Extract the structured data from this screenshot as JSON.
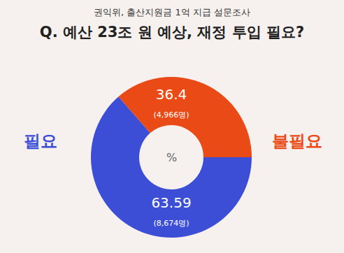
{
  "chart_data": {
    "type": "donut",
    "subtitle": "권익위, 출산지원금 1억 지급 설문조사",
    "title": "Q. 예산 23조 원 예상, 재정 투입 필요?",
    "categories": [
      "필요",
      "불필요"
    ],
    "values": [
      63.59,
      36.4
    ],
    "counts": [
      8674,
      4966
    ],
    "count_labels": [
      "(8,674명)",
      "(4,966명)"
    ],
    "unit": "%",
    "colors": [
      "#3d4ed6",
      "#ea4a16"
    ],
    "data_labels": true
  }
}
